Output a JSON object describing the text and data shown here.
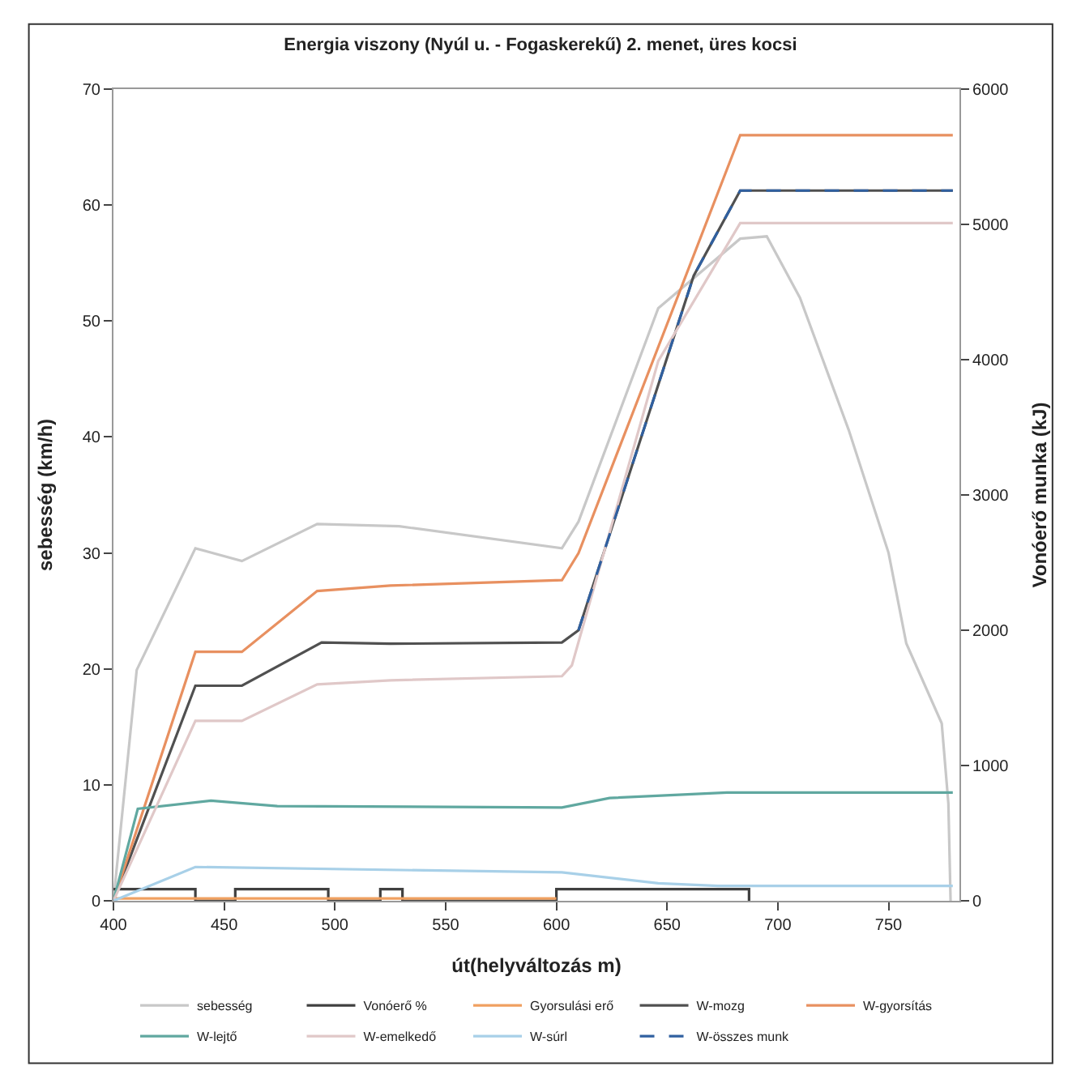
{
  "chart_data": {
    "type": "line",
    "title": "Energia viszony (Nyúl u. - Fogaskerekű) 2. menet, üres kocsi",
    "xlabel": "út(helyváltozás m)",
    "ylabel": "sebesség (km/h)",
    "y2label": "Vonóerő munka (kJ)",
    "xlim": [
      400,
      782
    ],
    "xticks": [
      400,
      450,
      500,
      550,
      600,
      650,
      700,
      750
    ],
    "ylim": [
      0,
      70
    ],
    "yticks": [
      0,
      10,
      20,
      30,
      40,
      50,
      60,
      70
    ],
    "y2lim": [
      0,
      6000
    ],
    "y2ticks": [
      0,
      1000,
      2000,
      3000,
      4000,
      5000,
      6000
    ],
    "legend": "bottom",
    "marker": "none",
    "series": [
      {
        "name": "sebesség",
        "color": "#c8c8c8",
        "x": [
          400,
          410.5,
          437,
          458,
          492,
          529,
          602.5,
          610,
          646,
          683,
          695,
          710,
          732,
          750,
          758,
          774,
          777,
          778
        ],
        "values": [
          0,
          19.9,
          30.4,
          29.3,
          32.5,
          32.3,
          30.4,
          32.7,
          51.1,
          57.1,
          57.3,
          52,
          40.6,
          30,
          22.2,
          15.3,
          8.4,
          0
        ]
      },
      {
        "name": "Vonóerő %",
        "color": "#404040",
        "x": [
          400,
          437,
          437,
          455,
          455,
          497,
          497,
          520.5,
          520.5,
          530.5,
          530.5,
          600,
          600,
          687,
          687
        ],
        "values": [
          1,
          1,
          0,
          0,
          1,
          1,
          0,
          0,
          1,
          1,
          0,
          0,
          1,
          1,
          0
        ]
      },
      {
        "name": "Gyorsulási erő",
        "color": "#f0a060",
        "x": [
          400,
          600
        ],
        "values": [
          0.2,
          0.2
        ]
      },
      {
        "name": "W-mozg",
        "color": "#505050",
        "axis": "y2",
        "x": [
          400,
          437,
          458,
          494,
          525,
          602.5,
          610,
          662,
          683,
          779
        ],
        "values": [
          0,
          1590,
          1590,
          1910,
          1900,
          1910,
          2000,
          4620,
          5250,
          5250
        ]
      },
      {
        "name": "W-gyorsítás",
        "color": "#e89060",
        "axis": "y2",
        "x": [
          400,
          437,
          458,
          492,
          525,
          602.5,
          610,
          683,
          779
        ],
        "values": [
          0,
          1840,
          1840,
          2290,
          2330,
          2370,
          2570,
          5660,
          5660
        ]
      },
      {
        "name": "W-lejtő",
        "color": "#60a8a0",
        "axis": "y2",
        "x": [
          400,
          411,
          444,
          474,
          602.5,
          624,
          677,
          779
        ],
        "values": [
          0,
          680,
          740,
          700,
          690,
          760,
          800,
          800
        ]
      },
      {
        "name": "W-emelkedő",
        "color": "#e0c8c8",
        "axis": "y2",
        "x": [
          400,
          437,
          458,
          492,
          525,
          602.5,
          607,
          646,
          683,
          779
        ],
        "values": [
          0,
          1330,
          1330,
          1600,
          1630,
          1660,
          1740,
          3990,
          5010,
          5010
        ]
      },
      {
        "name": "W-súrl",
        "color": "#a8d0e8",
        "axis": "y2",
        "x": [
          400,
          437,
          602.5,
          646,
          673,
          779
        ],
        "values": [
          0,
          250,
          210,
          130,
          110,
          110
        ]
      },
      {
        "name": "W-összes munk",
        "color": "#3060a0",
        "axis": "y2",
        "line_style": "dashed",
        "x": [
          610,
          662,
          683,
          779
        ],
        "values": [
          2000,
          4620,
          5250,
          5250
        ]
      }
    ]
  }
}
